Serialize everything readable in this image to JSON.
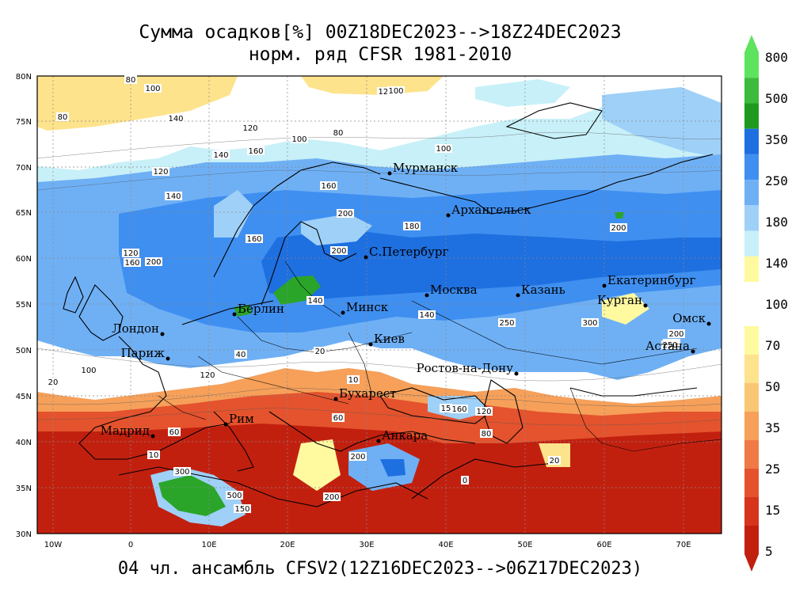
{
  "title": {
    "line1": "Сумма осадков[%] 00Z18DEC2023-->18Z24DEC2023",
    "line2": "норм. ряд CFSR 1981-2010"
  },
  "footer": "04 чл. ансамбль CFSV2(12Z16DEC2023-->06Z17DEC2023)",
  "axes": {
    "lat_labels": [
      "80N",
      "75N",
      "70N",
      "65N",
      "60N",
      "55N",
      "50N",
      "45N",
      "40N",
      "35N",
      "30N"
    ],
    "lon_labels": [
      "10W",
      "0",
      "10E",
      "20E",
      "30E",
      "40E",
      "50E",
      "60E",
      "70E"
    ]
  },
  "cities": [
    {
      "name": "Мурманск"
    },
    {
      "name": "Архангельск"
    },
    {
      "name": "С.Петербург"
    },
    {
      "name": "Москва"
    },
    {
      "name": "Казань"
    },
    {
      "name": "Екатеринбург"
    },
    {
      "name": "Курган"
    },
    {
      "name": "Омск"
    },
    {
      "name": "Астана"
    },
    {
      "name": "Минск"
    },
    {
      "name": "Берлин"
    },
    {
      "name": "Лондон"
    },
    {
      "name": "Париж"
    },
    {
      "name": "Киев"
    },
    {
      "name": "Ростов-на-Дону"
    },
    {
      "name": "Бухарест"
    },
    {
      "name": "Рим"
    },
    {
      "name": "Мадрид"
    },
    {
      "name": "Анкара"
    }
  ],
  "contour_labels": [
    "80",
    "100",
    "140",
    "120",
    "100",
    "80",
    "120",
    "100",
    "140",
    "100",
    "80",
    "120",
    "160",
    "200",
    "160",
    "200",
    "180",
    "140",
    "120",
    "160",
    "200",
    "250",
    "300",
    "200",
    "160",
    "140",
    "40",
    "20",
    "10",
    "60",
    "160",
    "120",
    "200",
    "500",
    "150",
    "200",
    "300",
    "100",
    "60",
    "10",
    "20",
    "80",
    "200",
    "160",
    "140",
    "120",
    "250",
    "20",
    "15",
    "0"
  ],
  "colorbar": {
    "labels": [
      "800",
      "500",
      "350",
      "250",
      "180",
      "140",
      "100",
      "70",
      "50",
      "35",
      "25",
      "15",
      "5"
    ],
    "colors": [
      "#5ee35e",
      "#3cbb3c",
      "#1f9a1f",
      "#1e6fe0",
      "#3f8ff0",
      "#6fb0f5",
      "#9fd0f8",
      "#c8f0f8",
      "#fff9a0",
      "#fde38c",
      "#f9c674",
      "#f6a05a",
      "#ef7a45",
      "#e4532d",
      "#d6341b",
      "#c2200f"
    ]
  },
  "colors": {
    "wet_dark": "#1e6fe0",
    "wet_mid": "#4a95ef",
    "wet_light": "#9fd0f8",
    "near_normal": "#ffffff",
    "dry_light": "#fde38c",
    "dry_mid": "#f6a05a",
    "dry_dark": "#c2200f",
    "very_wet": "#2aa52a"
  }
}
